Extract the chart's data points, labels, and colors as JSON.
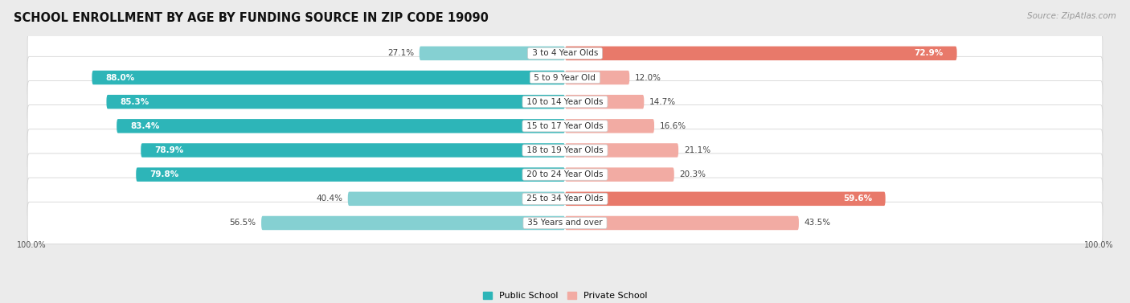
{
  "title": "SCHOOL ENROLLMENT BY AGE BY FUNDING SOURCE IN ZIP CODE 19090",
  "source": "Source: ZipAtlas.com",
  "categories": [
    "3 to 4 Year Olds",
    "5 to 9 Year Old",
    "10 to 14 Year Olds",
    "15 to 17 Year Olds",
    "18 to 19 Year Olds",
    "20 to 24 Year Olds",
    "25 to 34 Year Olds",
    "35 Years and over"
  ],
  "public_pct": [
    27.1,
    88.0,
    85.3,
    83.4,
    78.9,
    79.8,
    40.4,
    56.5
  ],
  "private_pct": [
    72.9,
    12.0,
    14.7,
    16.6,
    21.1,
    20.3,
    59.6,
    43.5
  ],
  "public_colors": [
    "#85d0d2",
    "#2db5b8",
    "#2db5b8",
    "#2db5b8",
    "#2db5b8",
    "#2db5b8",
    "#85d0d2",
    "#85d0d2"
  ],
  "private_colors": [
    "#e8796a",
    "#f2aba3",
    "#f2aba3",
    "#f2aba3",
    "#f2aba3",
    "#f2aba3",
    "#e8796a",
    "#f2aba3"
  ],
  "bg_color": "#ebebeb",
  "row_bg": "#f5f5f5",
  "title_fontsize": 10.5,
  "source_fontsize": 7.5,
  "bar_label_fontsize": 7.5,
  "category_fontsize": 7.5,
  "public_label_inside": [
    false,
    true,
    true,
    true,
    true,
    true,
    false,
    false
  ],
  "private_label_inside": [
    true,
    false,
    false,
    false,
    false,
    false,
    true,
    false
  ]
}
